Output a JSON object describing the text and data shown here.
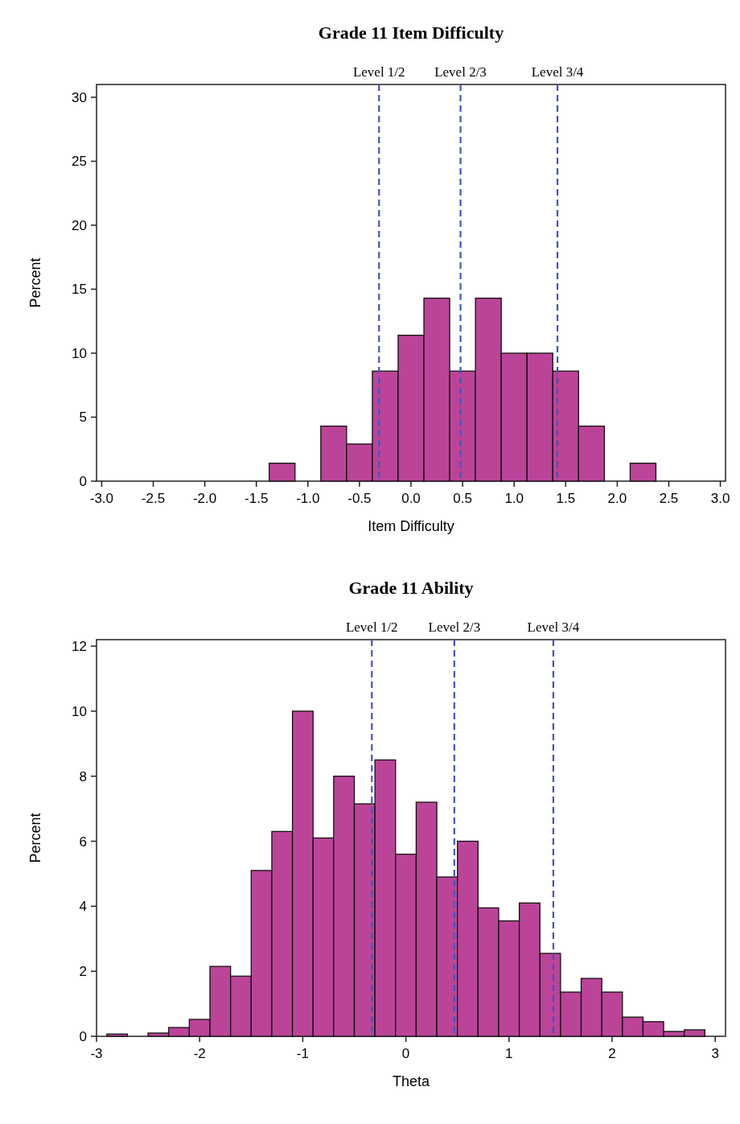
{
  "chart_data": [
    {
      "type": "histogram",
      "title": "Grade 11 Item Difficulty",
      "xlabel": "Item Difficulty",
      "ylabel": "Percent",
      "color": "#bb4499",
      "bins": [
        -1.375,
        -1.125,
        -0.875,
        -0.625,
        -0.375,
        -0.125,
        0.125,
        0.375,
        0.625,
        0.875,
        1.125,
        1.375,
        1.625,
        1.875,
        2.125,
        2.375
      ],
      "values": [
        1.4,
        0,
        4.3,
        2.9,
        8.6,
        11.4,
        14.3,
        8.6,
        14.3,
        10,
        10,
        8.6,
        4.3,
        0,
        1.4
      ],
      "xlim": [
        -3.05,
        3.05
      ],
      "ylim": [
        0,
        31
      ],
      "xticks": [
        {
          "value": -3,
          "label": "-3.0"
        },
        -2.5,
        {
          "value": -2,
          "label": "-2.0"
        },
        -1.5,
        {
          "value": -1,
          "label": "-1.0"
        },
        -0.5,
        {
          "value": 0,
          "label": "0.0"
        },
        0.5,
        {
          "value": 1,
          "label": "1.0"
        },
        1.5,
        {
          "value": 2,
          "label": "2.0"
        },
        2.5,
        {
          "value": 3,
          "label": "3.0"
        }
      ],
      "yticks": [
        0,
        5,
        10,
        15,
        20,
        25,
        30
      ],
      "grid": false,
      "ref_lines": [
        {
          "axis": "x",
          "value": -0.31,
          "label": "Level 1/2",
          "color": "#4455bb",
          "line_style": "dashed"
        },
        {
          "axis": "x",
          "value": 0.48,
          "label": "Level 2/3",
          "color": "#4455bb",
          "line_style": "dashed"
        },
        {
          "axis": "x",
          "value": 1.42,
          "label": "Level 3/4",
          "color": "#4455bb",
          "line_style": "dashed"
        }
      ]
    },
    {
      "type": "histogram",
      "title": "Grade 11 Ability",
      "xlabel": "Theta",
      "ylabel": "Percent",
      "color": "#bb4499",
      "bins": [
        -2.9,
        -2.7,
        -2.5,
        -2.3,
        -2.1,
        -1.9,
        -1.7,
        -1.5,
        -1.3,
        -1.1,
        -0.9,
        -0.7,
        -0.5,
        -0.3,
        -0.1,
        0.1,
        0.3,
        0.5,
        0.7,
        0.9,
        1.1,
        1.3,
        1.5,
        1.7,
        1.9,
        2.1,
        2.3,
        2.5,
        2.7,
        2.9
      ],
      "values": [
        0.07,
        0,
        0.1,
        0.27,
        0.52,
        2.15,
        1.85,
        5.1,
        6.3,
        10,
        6.1,
        8,
        7.15,
        8.5,
        5.6,
        7.2,
        4.9,
        6,
        3.95,
        3.55,
        4.1,
        2.55,
        1.36,
        1.78,
        1.36,
        0.59,
        0.45,
        0.15,
        0.2
      ],
      "xlim": [
        -3,
        3.1
      ],
      "ylim": [
        0,
        12.2
      ],
      "xticks": [
        -3,
        -2,
        -1,
        0,
        1,
        2,
        3
      ],
      "yticks": [
        0,
        2,
        4,
        6,
        8,
        10,
        12
      ],
      "grid": false,
      "ref_lines": [
        {
          "axis": "x",
          "value": -0.33,
          "label": "Level 1/2",
          "color": "#4455bb",
          "line_style": "dashed"
        },
        {
          "axis": "x",
          "value": 0.47,
          "label": "Level 2/3",
          "color": "#4455bb",
          "line_style": "dashed"
        },
        {
          "axis": "x",
          "value": 1.43,
          "label": "Level 3/4",
          "color": "#4455bb",
          "line_style": "dashed"
        }
      ]
    }
  ]
}
